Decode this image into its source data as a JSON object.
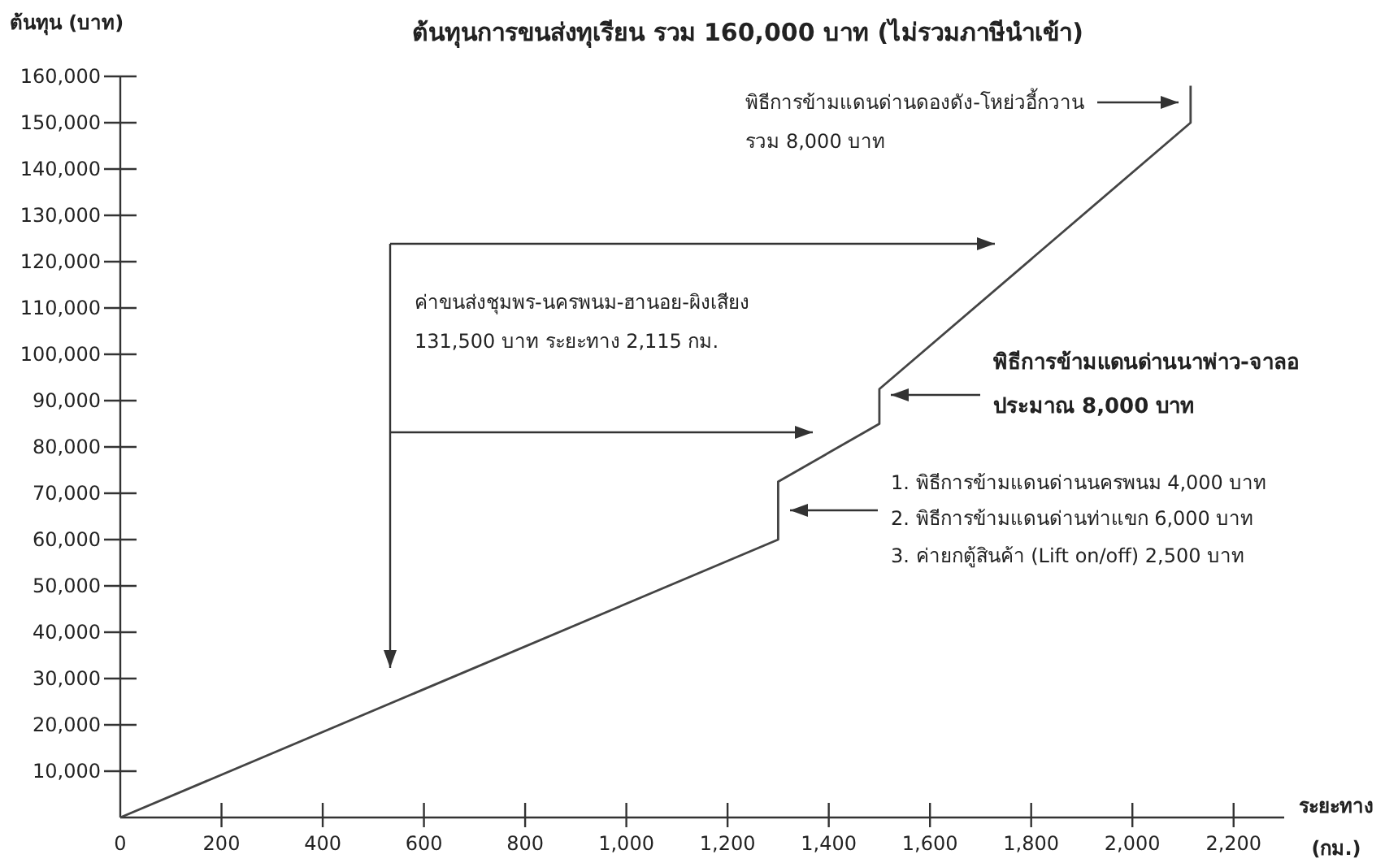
{
  "chart_data": {
    "type": "line",
    "title": "ต้นทุนการขนส่งทุเรียน รวม 160,000 บาท (ไม่รวมภาษีนำเข้า)",
    "ylabel": "ต้นทุน (บาท)",
    "xlabel": "ระยะทาง (กม.)",
    "series": [
      {
        "color": "#444444",
        "x": [
          0,
          1300,
          1300,
          1500,
          1500,
          2115,
          2115
        ],
        "values": [
          0,
          60000,
          72500,
          85000,
          92500,
          150000,
          158000
        ]
      }
    ],
    "xlim": [
      0,
      2300
    ],
    "ylim": [
      0,
      160000
    ],
    "xticks": [
      0,
      200,
      400,
      600,
      800,
      {
        "value": 1000,
        "label": "1,000"
      },
      {
        "value": 1200,
        "label": "1,200"
      },
      {
        "value": 1400,
        "label": "1,400"
      },
      {
        "value": 1600,
        "label": "1,600"
      },
      {
        "value": 1800,
        "label": "1,800"
      },
      {
        "value": 2000,
        "label": "2,000"
      },
      {
        "value": 2200,
        "label": "2,200"
      }
    ],
    "yticks": [
      {
        "value": 10000,
        "label": "10,000"
      },
      {
        "value": 20000,
        "label": "20,000"
      },
      {
        "value": 30000,
        "label": "30,000"
      },
      {
        "value": 40000,
        "label": "40,000"
      },
      {
        "value": 50000,
        "label": "50,000"
      },
      {
        "value": 60000,
        "label": "60,000"
      },
      {
        "value": 70000,
        "label": "70,000"
      },
      {
        "value": 80000,
        "label": "80,000"
      },
      {
        "value": 90000,
        "label": "90,000"
      },
      {
        "value": 100000,
        "label": "100,000"
      },
      {
        "value": 110000,
        "label": "110,000"
      },
      {
        "value": 120000,
        "label": "120,000"
      },
      {
        "value": 130000,
        "label": "130,000"
      },
      {
        "value": 140000,
        "label": "140,000"
      },
      {
        "value": 150000,
        "label": "150,000"
      },
      {
        "value": 160000,
        "label": "160,000"
      }
    ],
    "grid": false,
    "marker": "none",
    "line_style": "solid",
    "annotations": [
      "พิธีการข้ามแดนด่านดองดัง-โหย่วอี้กวาน\nรวม 8,000 บาท",
      "ค่าขนส่งชุมพร-นครพนม-ฮานอย-ผิงเสียง\n131,500 บาท ระยะทาง 2,115 กม.",
      "พิธีการข้ามแดนด่านนาพ่าว-จาลอ\nประมาณ 8,000 บาท",
      "1. พิธีการข้ามแดนด่านนครพนม 4,000 บาท\n2. พิธีการข้ามแดนด่านท่าแขก 6,000 บาท\n3. ค่ายกตู้สินค้า (Lift on/off) 2,500 บาท"
    ]
  }
}
